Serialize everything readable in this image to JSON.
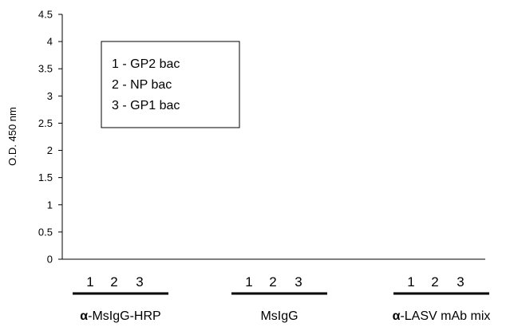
{
  "chart_data": {
    "type": "bar",
    "title": "",
    "ylabel": "O.D. 450 nm",
    "ylim": [
      0,
      4.5
    ],
    "yticks": [
      "0",
      "0.5",
      "1",
      "1.5",
      "2",
      "2.5",
      "3",
      "3.5",
      "4",
      "4.5"
    ],
    "grid": false,
    "legend_position": "top-left",
    "legend": [
      "1 - GP2 bac",
      "2 - NP bac",
      "3 - GP1 bac"
    ],
    "lane_labels": [
      "1",
      "2",
      "3"
    ],
    "groups": [
      {
        "prefix": "α",
        "suffix": "-MsIgG-HRP"
      },
      {
        "prefix": "",
        "suffix": "MsIgG"
      },
      {
        "prefix": "α",
        "suffix": "-LASV mAb mix"
      }
    ],
    "series": [
      {
        "name": "GP2 bac",
        "values": [
          null,
          null,
          null
        ]
      },
      {
        "name": "NP bac",
        "values": [
          null,
          null,
          null
        ]
      },
      {
        "name": "GP1 bac",
        "values": [
          null,
          null,
          null
        ]
      }
    ]
  }
}
